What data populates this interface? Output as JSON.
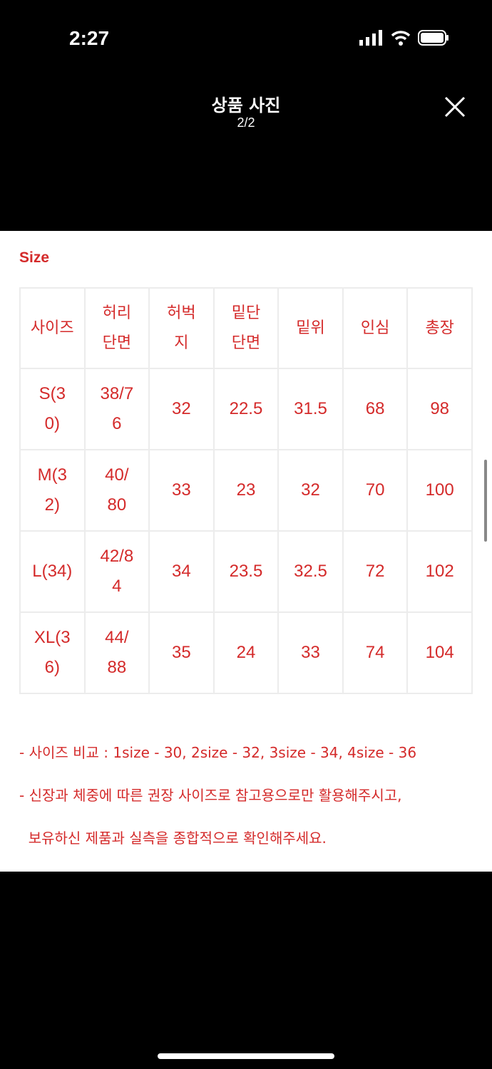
{
  "status_bar": {
    "time": "2:27"
  },
  "header": {
    "title": "상품 사진",
    "counter": "2/2"
  },
  "image": {
    "size_label": "Size",
    "table": {
      "headers": [
        [
          "사이즈"
        ],
        [
          "허리",
          "단면"
        ],
        [
          "허벅",
          "지"
        ],
        [
          "밑단",
          "단면"
        ],
        [
          "밑위"
        ],
        [
          "인심"
        ],
        [
          "총장"
        ]
      ],
      "rows": [
        [
          [
            "S(3",
            "0)"
          ],
          [
            "38/7",
            "6"
          ],
          [
            "32"
          ],
          [
            "22.5"
          ],
          [
            "31.5"
          ],
          [
            "68"
          ],
          [
            "98"
          ]
        ],
        [
          [
            "M(3",
            "2)"
          ],
          [
            "40/",
            "80"
          ],
          [
            "33"
          ],
          [
            "23"
          ],
          [
            "32"
          ],
          [
            "70"
          ],
          [
            "100"
          ]
        ],
        [
          [
            "L(34)"
          ],
          [
            "42/8",
            "4"
          ],
          [
            "34"
          ],
          [
            "23.5"
          ],
          [
            "32.5"
          ],
          [
            "72"
          ],
          [
            "102"
          ]
        ],
        [
          [
            "XL(3",
            "6)"
          ],
          [
            "44/",
            "88"
          ],
          [
            "35"
          ],
          [
            "24"
          ],
          [
            "33"
          ],
          [
            "74"
          ],
          [
            "104"
          ]
        ]
      ]
    },
    "notes": [
      "- 사이즈 비교 : 1size - 30, 2size - 32, 3size - 34, 4size - 36",
      "- 신장과 체중에 따른 권장 사이즈로 참고용으로만 활용해주시고,",
      "  보유하신 제품과 실측을 종합적으로 확인해주세요."
    ]
  },
  "colors": {
    "accent": "#d42a2a",
    "background": "#000000"
  }
}
